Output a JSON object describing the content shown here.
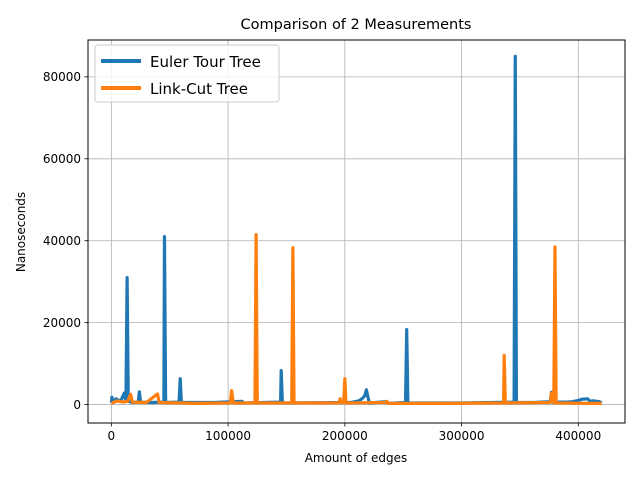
{
  "chart_data": {
    "type": "line",
    "title": "Comparison of 2 Measurements",
    "xlabel": "Amount of edges",
    "ylabel": "Nanoseconds",
    "xlim": [
      -20000,
      440000
    ],
    "ylim": [
      -4500,
      89000
    ],
    "xticks": [
      0,
      100000,
      200000,
      300000,
      400000
    ],
    "xtick_labels": [
      "0",
      "100000",
      "200000",
      "300000",
      "400000"
    ],
    "yticks": [
      0,
      20000,
      40000,
      60000,
      80000
    ],
    "ytick_labels": [
      "0",
      "20000",
      "40000",
      "60000",
      "80000"
    ],
    "grid": true,
    "legend_position": "top-left",
    "series": [
      {
        "name": "Euler Tour Tree",
        "color": "#1f77b4",
        "points": [
          [
            0,
            400
          ],
          [
            500,
            1800
          ],
          [
            1500,
            600
          ],
          [
            4000,
            1400
          ],
          [
            8000,
            800
          ],
          [
            11000,
            2800
          ],
          [
            12500,
            900
          ],
          [
            13500,
            31000
          ],
          [
            14500,
            800
          ],
          [
            18000,
            500
          ],
          [
            23000,
            600
          ],
          [
            24000,
            3100
          ],
          [
            25000,
            600
          ],
          [
            34000,
            500
          ],
          [
            45000,
            600
          ],
          [
            45500,
            41000
          ],
          [
            46500,
            500
          ],
          [
            58000,
            600
          ],
          [
            59000,
            6300
          ],
          [
            60000,
            500
          ],
          [
            88000,
            500
          ],
          [
            112000,
            800
          ],
          [
            113000,
            400
          ],
          [
            145000,
            600
          ],
          [
            145500,
            8300
          ],
          [
            146500,
            400
          ],
          [
            205000,
            500
          ],
          [
            212000,
            900
          ],
          [
            215000,
            1500
          ],
          [
            217000,
            2100
          ],
          [
            218500,
            3600
          ],
          [
            219500,
            2200
          ],
          [
            221000,
            400
          ],
          [
            236000,
            700
          ],
          [
            237000,
            300
          ],
          [
            252000,
            500
          ],
          [
            253000,
            18300
          ],
          [
            254000,
            400
          ],
          [
            300000,
            400
          ],
          [
            345000,
            600
          ],
          [
            346000,
            85000
          ],
          [
            347000,
            500
          ],
          [
            362000,
            500
          ],
          [
            376000,
            700
          ],
          [
            377000,
            3000
          ],
          [
            378000,
            600
          ],
          [
            390000,
            600
          ],
          [
            395000,
            700
          ],
          [
            400000,
            1000
          ],
          [
            403000,
            1300
          ],
          [
            408000,
            1400
          ],
          [
            410000,
            800
          ],
          [
            413000,
            900
          ],
          [
            418000,
            700
          ],
          [
            420000,
            400
          ]
        ]
      },
      {
        "name": "Link-Cut Tree",
        "color": "#ff7f0e",
        "points": [
          [
            0,
            300
          ],
          [
            5000,
            900
          ],
          [
            10000,
            600
          ],
          [
            14000,
            800
          ],
          [
            16500,
            2500
          ],
          [
            18000,
            600
          ],
          [
            30000,
            500
          ],
          [
            39500,
            2600
          ],
          [
            41000,
            500
          ],
          [
            60000,
            400
          ],
          [
            70000,
            300
          ],
          [
            102000,
            400
          ],
          [
            103000,
            3400
          ],
          [
            104500,
            400
          ],
          [
            123000,
            400
          ],
          [
            124000,
            41500
          ],
          [
            125000,
            400
          ],
          [
            154500,
            400
          ],
          [
            155500,
            38300
          ],
          [
            156500,
            400
          ],
          [
            195000,
            400
          ],
          [
            196000,
            1400
          ],
          [
            197000,
            500
          ],
          [
            199000,
            500
          ],
          [
            200000,
            6300
          ],
          [
            201000,
            400
          ],
          [
            235000,
            500
          ],
          [
            236000,
            800
          ],
          [
            237000,
            300
          ],
          [
            285000,
            300
          ],
          [
            336000,
            400
          ],
          [
            336500,
            12000
          ],
          [
            337500,
            400
          ],
          [
            376000,
            500
          ],
          [
            377000,
            2800
          ],
          [
            379000,
            400
          ],
          [
            380000,
            38500
          ],
          [
            381000,
            400
          ],
          [
            410000,
            300
          ],
          [
            420000,
            300
          ]
        ]
      }
    ]
  }
}
